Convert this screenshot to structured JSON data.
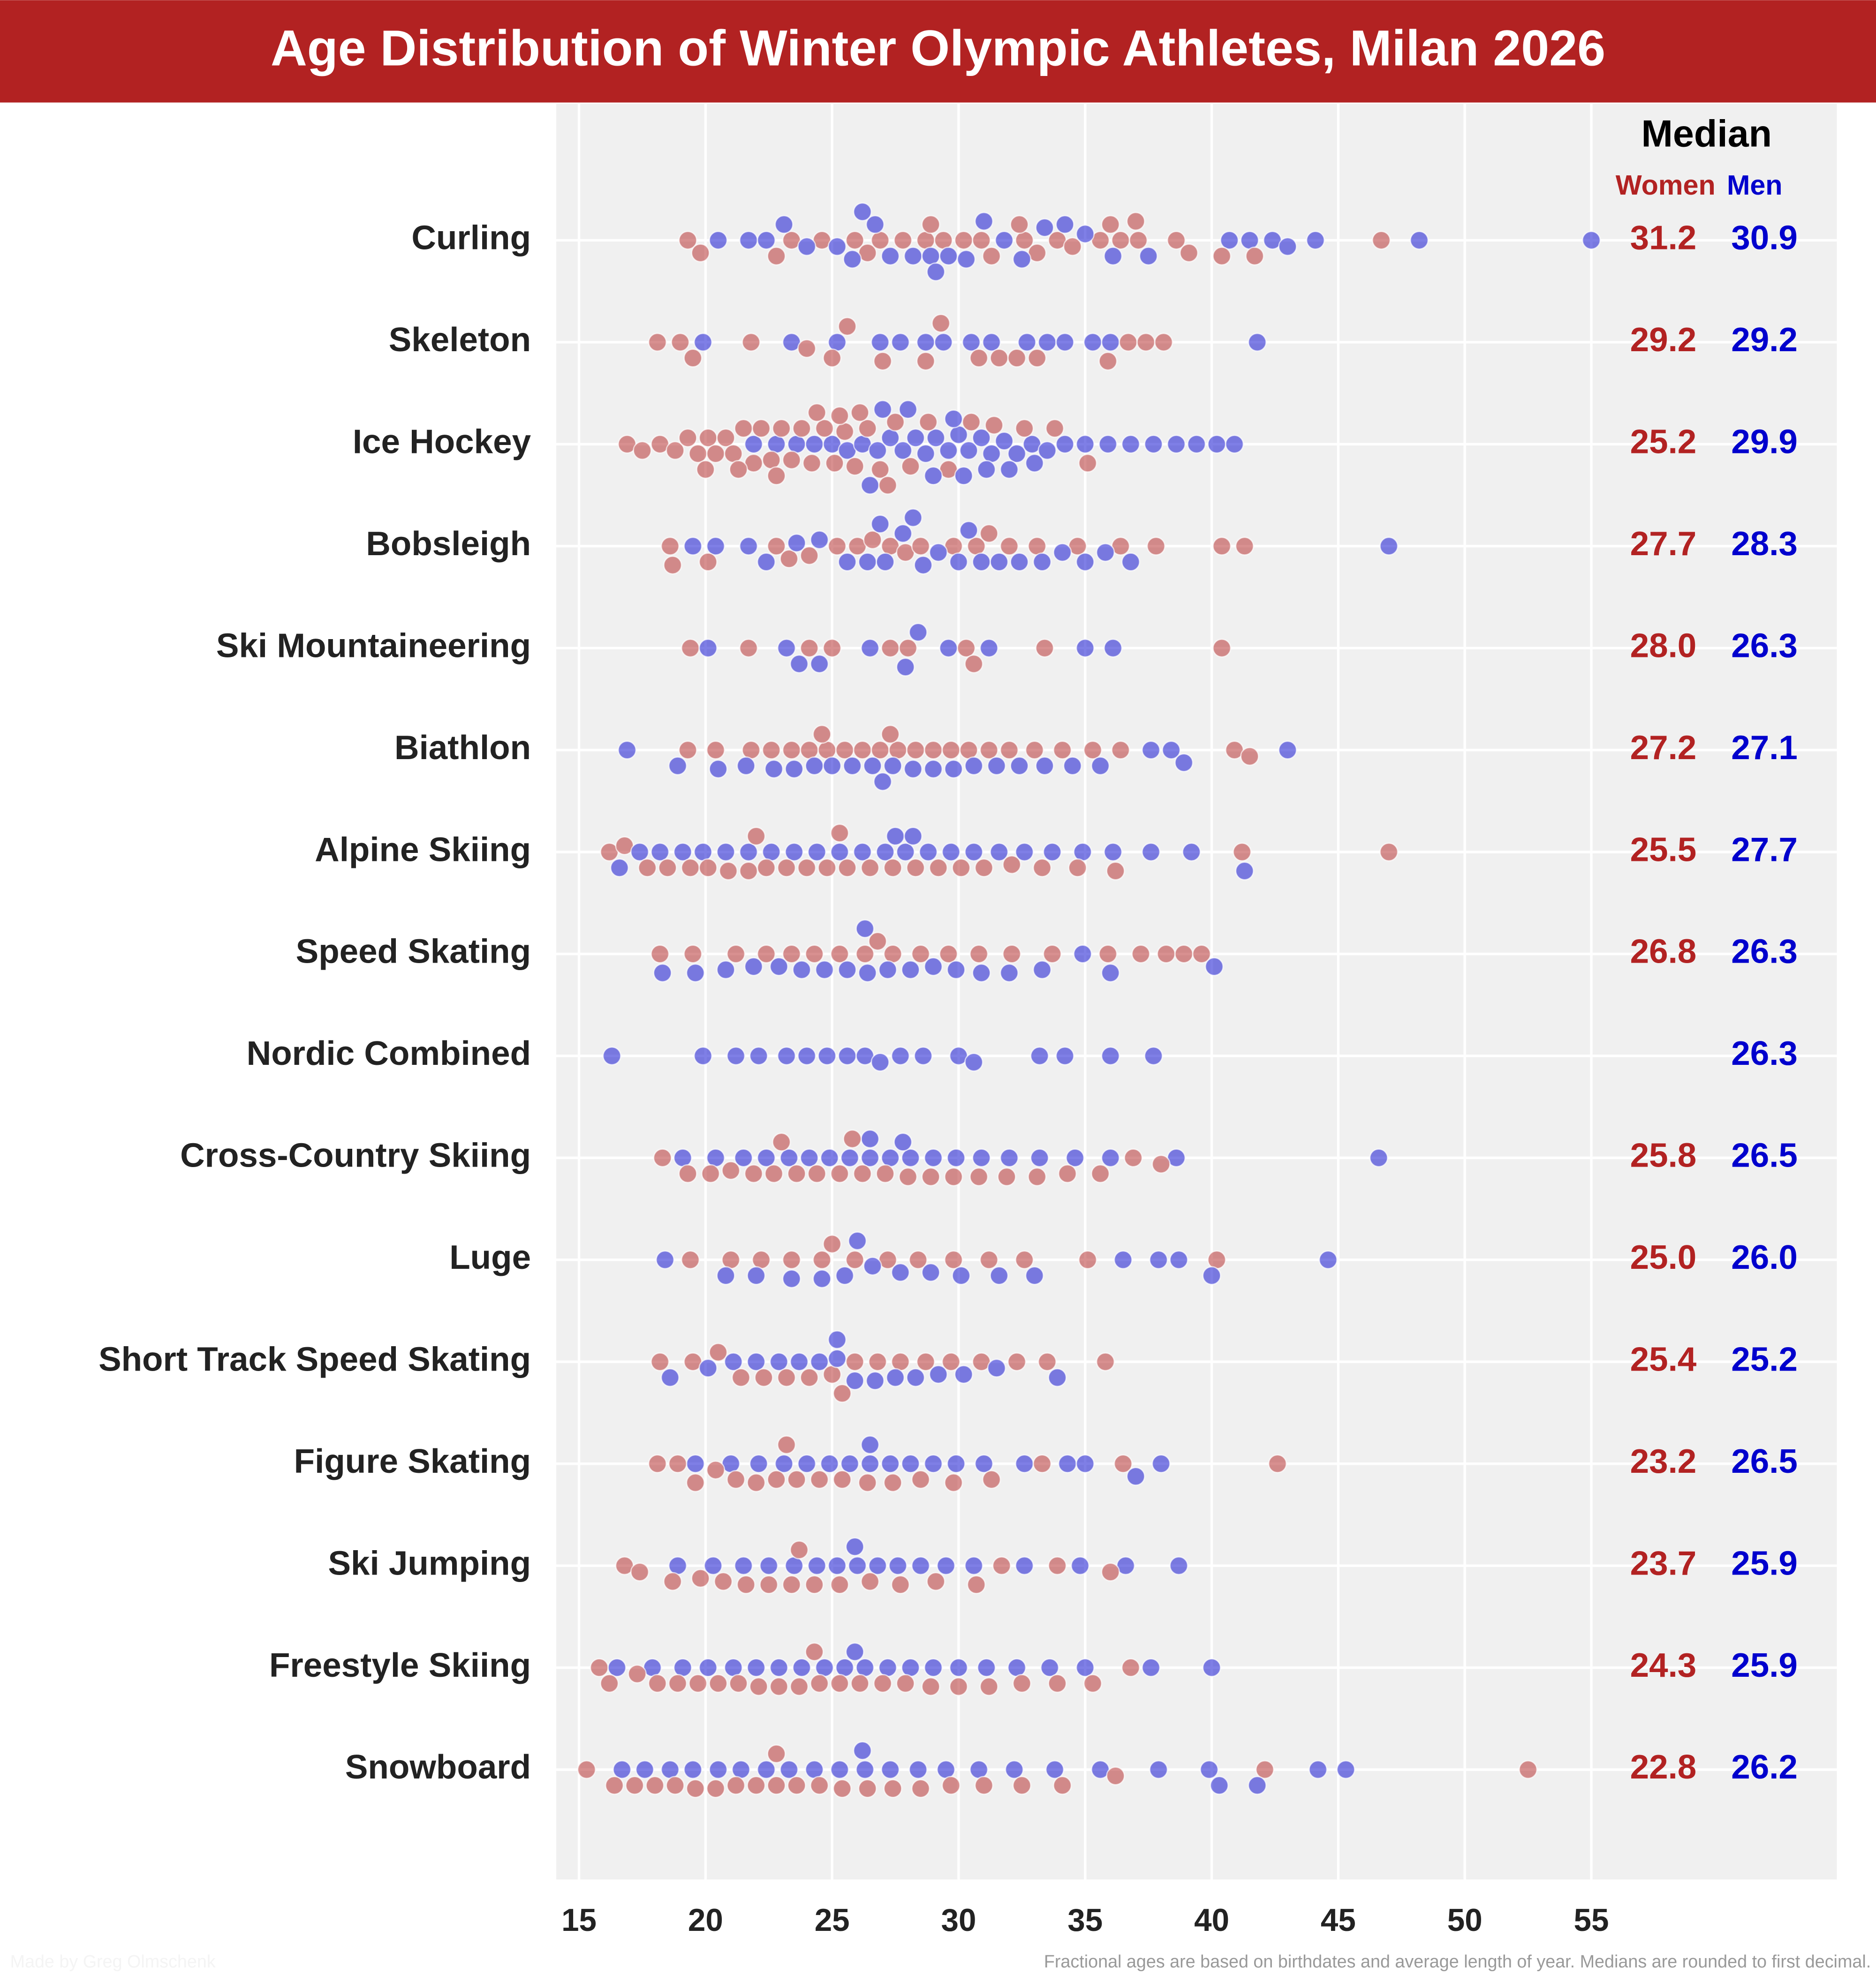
{
  "chart_data": {
    "type": "beeswarm",
    "title": "Age Distribution of Winter Olympic Athletes, Milan 2026",
    "median_title": "Median",
    "note": "Fractional ages are based on birthdates and average length of year. Medians are rounded to first decimal.",
    "credit": "Made by Greg Olmschenk",
    "categories": [
      "Curling",
      "Skeleton",
      "Ice Hockey",
      "Bobsleigh",
      "Ski Mountaineering",
      "Biathlon",
      "Alpine Skiing",
      "Speed Skating",
      "Nordic Combined",
      "Cross-Country Skiing",
      "Luge",
      "Short Track Speed Skating",
      "Figure Skating",
      "Ski Jumping",
      "Freestyle Skiing",
      "Snowboard"
    ],
    "xlim": [
      14.1,
      64.7
    ],
    "xticks": [
      15,
      20,
      25,
      30,
      35,
      40,
      45,
      50,
      55
    ],
    "grid": true,
    "series": [
      {
        "name": "Women",
        "color": "#b22222",
        "values": [
          [
            19.3,
            19.8,
            23.4,
            22.8,
            24.6,
            25.9,
            26.4,
            26.9,
            27.8,
            28.7,
            29.4,
            30.2,
            30.9,
            31.3,
            32.6,
            33.1,
            33.9,
            34.5,
            35.6,
            36.4,
            37.1,
            37.0,
            38.6,
            39.1,
            40.4,
            41.7,
            46.7,
            32.4,
            28.9,
            36.0
          ],
          [
            18.1,
            19.0,
            19.5,
            21.8,
            24.0,
            25.0,
            25.6,
            27.0,
            28.7,
            29.3,
            30.8,
            31.6,
            32.3,
            33.1,
            35.9,
            36.7,
            37.4,
            38.1
          ],
          [
            16.9,
            17.5,
            18.2,
            18.8,
            19.3,
            19.7,
            20.1,
            20.4,
            20.8,
            21.1,
            21.5,
            21.9,
            22.2,
            22.6,
            23.0,
            23.4,
            23.8,
            24.2,
            24.7,
            25.1,
            25.5,
            25.9,
            26.4,
            26.9,
            27.5,
            28.1,
            28.8,
            29.6,
            30.5,
            31.4,
            32.6,
            33.8,
            35.1,
            20.0,
            21.3,
            22.8,
            24.4,
            25.3,
            26.1,
            27.2
          ],
          [
            18.6,
            18.7,
            20.1,
            22.8,
            23.3,
            24.1,
            25.2,
            26.0,
            27.3,
            27.9,
            28.5,
            29.8,
            30.7,
            32.0,
            33.1,
            34.7,
            36.4,
            37.8,
            40.4,
            41.3,
            26.6,
            31.2
          ],
          [
            19.4,
            21.7,
            24.1,
            25.0,
            27.3,
            28.0,
            30.3,
            30.6,
            33.4,
            40.4
          ],
          [
            19.3,
            20.4,
            21.8,
            22.6,
            23.4,
            24.1,
            24.8,
            25.5,
            26.2,
            26.9,
            27.6,
            28.3,
            29.0,
            29.7,
            30.4,
            31.2,
            32.0,
            33.0,
            34.1,
            35.3,
            36.4,
            40.9,
            41.5,
            27.3,
            24.6
          ],
          [
            16.2,
            16.8,
            17.7,
            18.5,
            19.4,
            20.1,
            20.9,
            21.7,
            22.4,
            23.2,
            24.0,
            24.8,
            25.6,
            26.5,
            27.4,
            28.3,
            29.2,
            30.1,
            31.0,
            32.1,
            33.3,
            34.7,
            36.2,
            41.2,
            47.0,
            22.0,
            25.3
          ],
          [
            18.2,
            19.5,
            21.2,
            22.4,
            23.4,
            24.3,
            25.3,
            26.3,
            27.4,
            28.5,
            29.6,
            30.8,
            32.1,
            33.7,
            35.9,
            37.2,
            38.2,
            38.9,
            39.6,
            26.8
          ],
          [],
          [
            18.3,
            19.3,
            20.2,
            21.0,
            21.9,
            22.7,
            23.6,
            24.4,
            25.3,
            26.2,
            27.1,
            28.0,
            28.9,
            29.8,
            30.8,
            31.9,
            33.1,
            34.3,
            35.6,
            36.9,
            38.0,
            25.8,
            23.0
          ],
          [
            19.4,
            21.0,
            22.2,
            23.4,
            24.6,
            25.9,
            27.2,
            28.4,
            29.8,
            31.2,
            32.6,
            35.1,
            40.2,
            25.0
          ],
          [
            18.2,
            19.5,
            20.5,
            21.4,
            22.3,
            23.2,
            24.1,
            25.0,
            25.9,
            26.8,
            27.7,
            28.7,
            29.7,
            30.9,
            32.3,
            33.5,
            35.8,
            25.4
          ],
          [
            18.1,
            18.9,
            19.6,
            20.4,
            21.2,
            22.0,
            22.8,
            23.6,
            24.5,
            25.4,
            26.4,
            27.4,
            28.5,
            29.8,
            31.3,
            33.3,
            36.5,
            42.6,
            23.2
          ],
          [
            16.8,
            17.4,
            18.7,
            19.8,
            20.7,
            21.6,
            22.5,
            23.4,
            24.3,
            25.3,
            26.5,
            27.7,
            29.1,
            30.7,
            31.7,
            33.9,
            36.0,
            23.7
          ],
          [
            15.8,
            16.2,
            17.3,
            18.1,
            18.9,
            19.7,
            20.5,
            21.3,
            22.1,
            22.9,
            23.7,
            24.5,
            25.3,
            26.1,
            27.0,
            27.9,
            28.9,
            30.0,
            31.2,
            32.5,
            33.9,
            35.3,
            36.8,
            24.3
          ],
          [
            15.3,
            16.4,
            17.2,
            18.0,
            18.8,
            19.6,
            20.4,
            21.2,
            22.0,
            22.8,
            23.6,
            24.5,
            25.4,
            26.4,
            27.4,
            28.5,
            29.7,
            31.0,
            32.5,
            34.1,
            36.2,
            42.1,
            52.5,
            22.8
          ]
        ],
        "medians": [
          31.2,
          29.2,
          25.2,
          27.7,
          28.0,
          27.2,
          25.5,
          26.8,
          null,
          25.8,
          25.0,
          25.4,
          23.2,
          23.7,
          24.3,
          22.8
        ],
        "median_labels": [
          "31.2",
          "29.2",
          "25.2",
          "27.7",
          "28.0",
          "27.2",
          "25.5",
          "26.8",
          null,
          "25.8",
          "25.0",
          "25.4",
          "23.2",
          "23.7",
          "24.3",
          "22.8"
        ]
      },
      {
        "name": "Men",
        "color": "#0000cd",
        "values": [
          [
            20.5,
            21.7,
            22.4,
            23.1,
            24.0,
            25.2,
            25.8,
            26.7,
            27.3,
            28.2,
            28.9,
            29.6,
            30.3,
            31.0,
            31.8,
            32.5,
            33.4,
            34.2,
            35.0,
            36.1,
            37.5,
            40.7,
            41.5,
            42.4,
            43.0,
            44.1,
            48.2,
            55.0,
            29.1,
            26.2
          ],
          [
            19.9,
            23.4,
            25.2,
            26.9,
            27.7,
            28.7,
            29.4,
            30.5,
            31.3,
            32.7,
            33.5,
            34.2,
            35.3,
            36.0,
            41.8
          ],
          [
            21.9,
            22.8,
            23.6,
            24.3,
            25.0,
            25.6,
            26.2,
            26.8,
            27.3,
            27.8,
            28.3,
            28.7,
            29.1,
            29.6,
            30.0,
            30.4,
            30.9,
            31.3,
            31.8,
            32.3,
            32.9,
            33.5,
            34.2,
            35.0,
            35.9,
            36.8,
            37.7,
            38.6,
            39.4,
            40.2,
            40.9,
            27.0,
            28.0,
            29.0,
            30.2,
            31.1,
            32.0,
            26.5,
            29.8,
            33.0
          ],
          [
            19.5,
            20.4,
            21.7,
            22.4,
            23.6,
            24.5,
            25.6,
            26.4,
            27.1,
            27.8,
            28.6,
            29.2,
            30.0,
            30.9,
            31.6,
            32.4,
            33.3,
            34.1,
            35.0,
            35.8,
            36.8,
            47.0,
            28.2,
            26.9,
            30.4
          ],
          [
            20.1,
            23.2,
            23.7,
            24.5,
            26.5,
            27.9,
            28.4,
            29.6,
            31.2,
            35.0,
            36.1
          ],
          [
            16.9,
            18.9,
            20.5,
            21.6,
            22.7,
            23.5,
            24.3,
            25.0,
            25.8,
            26.6,
            27.4,
            28.2,
            29.0,
            29.8,
            30.6,
            31.5,
            32.4,
            33.4,
            34.5,
            35.6,
            37.6,
            38.4,
            38.9,
            43.0,
            27.0
          ],
          [
            16.6,
            17.4,
            18.2,
            19.1,
            19.9,
            20.8,
            21.7,
            22.6,
            23.5,
            24.4,
            25.3,
            26.2,
            27.1,
            27.9,
            28.8,
            29.7,
            30.6,
            31.6,
            32.6,
            33.7,
            34.9,
            36.1,
            37.6,
            39.2,
            41.3,
            27.5,
            28.2
          ],
          [
            18.3,
            19.6,
            20.8,
            21.9,
            22.9,
            23.8,
            24.7,
            25.6,
            26.4,
            27.2,
            28.1,
            29.0,
            29.9,
            30.9,
            32.0,
            33.3,
            34.9,
            36.0,
            40.1,
            26.3
          ],
          [
            16.3,
            19.9,
            21.2,
            22.1,
            23.2,
            24.0,
            24.8,
            25.6,
            26.3,
            26.9,
            27.7,
            28.6,
            30.0,
            30.6,
            33.2,
            34.2,
            36.0,
            37.7
          ],
          [
            19.1,
            20.4,
            21.5,
            22.4,
            23.3,
            24.1,
            24.9,
            25.7,
            26.5,
            27.3,
            28.1,
            29.0,
            29.9,
            30.9,
            32.0,
            33.2,
            34.6,
            36.0,
            38.6,
            46.6,
            26.5,
            27.8
          ],
          [
            18.4,
            20.8,
            22.0,
            23.4,
            24.6,
            25.5,
            26.6,
            27.7,
            28.9,
            30.1,
            31.6,
            33.0,
            36.5,
            37.9,
            38.7,
            40.0,
            44.6,
            26.0
          ],
          [
            18.6,
            20.1,
            21.1,
            22.0,
            22.9,
            23.7,
            24.5,
            25.2,
            25.9,
            26.7,
            27.5,
            28.3,
            29.2,
            30.2,
            31.5,
            33.9,
            25.2
          ],
          [
            19.6,
            21.0,
            22.1,
            23.1,
            24.0,
            24.9,
            25.7,
            26.5,
            27.3,
            28.1,
            29.0,
            29.9,
            31.0,
            32.6,
            34.3,
            35.0,
            37.0,
            38.0,
            26.5
          ],
          [
            18.9,
            20.3,
            21.5,
            22.5,
            23.5,
            24.4,
            25.2,
            26.0,
            26.8,
            27.6,
            28.5,
            29.5,
            30.6,
            32.6,
            34.8,
            36.6,
            38.7,
            25.9
          ],
          [
            16.5,
            17.9,
            19.1,
            20.1,
            21.1,
            22.0,
            22.9,
            23.8,
            24.7,
            25.5,
            26.3,
            27.2,
            28.1,
            29.0,
            30.0,
            31.1,
            32.3,
            33.6,
            35.0,
            37.6,
            40.0,
            25.9
          ],
          [
            16.7,
            17.6,
            18.6,
            19.5,
            20.5,
            21.4,
            22.4,
            23.3,
            24.3,
            25.3,
            26.3,
            27.3,
            28.4,
            29.5,
            30.8,
            32.2,
            33.8,
            35.6,
            37.9,
            39.9,
            40.3,
            41.8,
            44.2,
            45.3,
            26.2
          ]
        ],
        "medians": [
          30.9,
          29.2,
          29.9,
          28.3,
          26.3,
          27.1,
          27.7,
          26.3,
          26.3,
          26.5,
          26.0,
          25.2,
          26.5,
          25.9,
          25.9,
          26.2
        ],
        "median_labels": [
          "30.9",
          "29.2",
          "29.9",
          "28.3",
          "26.3",
          "27.1",
          "27.7",
          "26.3",
          "26.3",
          "26.5",
          "26.0",
          "25.2",
          "26.5",
          "25.9",
          "25.9",
          "26.2"
        ]
      }
    ]
  }
}
